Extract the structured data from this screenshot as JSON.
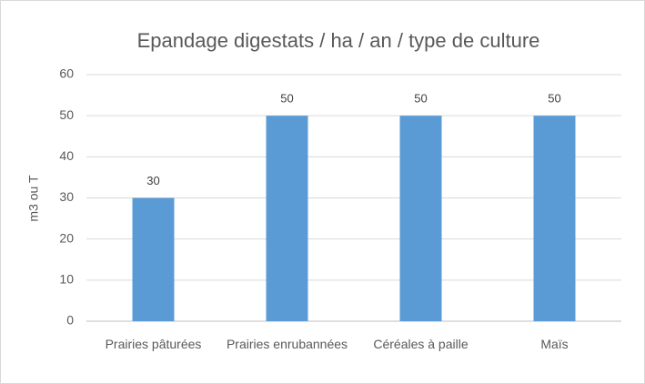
{
  "chart_data": {
    "type": "bar",
    "title": "Epandage digestats / ha / an / type de culture",
    "y_label": "m3 ou T",
    "categories": [
      "Prairies pâturées",
      "Prairies enrubannées",
      "Céréales à paille",
      "Maïs"
    ],
    "values": [
      30,
      50,
      50,
      50
    ],
    "color": "#5b9bd5",
    "ylim": [
      0,
      60
    ],
    "yticks": [
      0,
      10,
      20,
      30,
      40,
      50,
      60
    ],
    "grid": true,
    "data_labels": true
  }
}
